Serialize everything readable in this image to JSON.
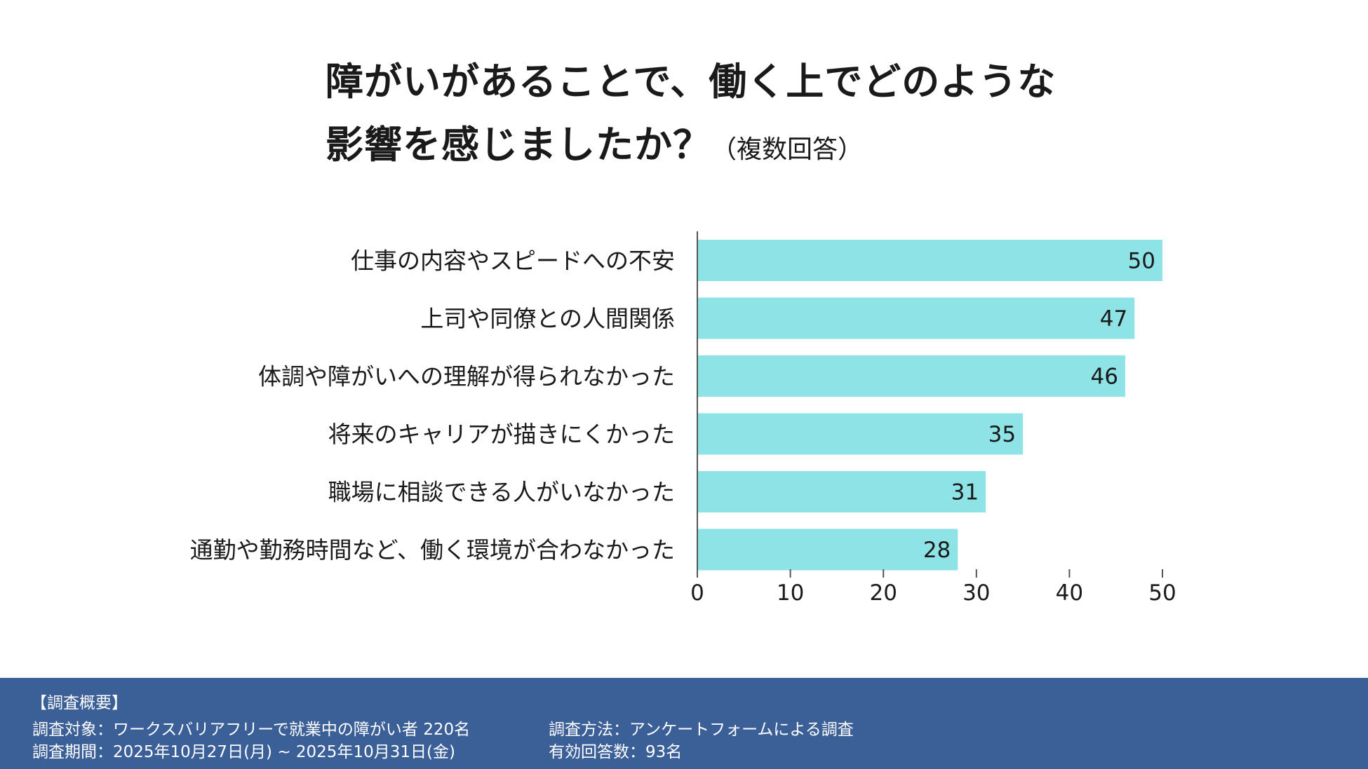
{
  "title": {
    "line1": "障がいがあることで、働く上でどのような",
    "line2": "影響を感じましたか？",
    "note": "（複数回答）"
  },
  "chart_data": {
    "type": "bar",
    "orientation": "horizontal",
    "categories": [
      "仕事の内容やスピードへの不安",
      "上司や同僚との人間関係",
      "体調や障がいへの理解が得られなかった",
      "将来のキャリアが描きにくかった",
      "職場に相談できる人がいなかった",
      "通勤や勤務時間など、働く環境が合わなかった"
    ],
    "values": [
      50,
      47,
      46,
      35,
      31,
      28
    ],
    "xlim": [
      0,
      50
    ],
    "xticks": [
      0,
      10,
      20,
      30,
      40,
      50
    ],
    "bar_color": "#8ee3e6",
    "data_labels": true,
    "grid": false,
    "legend": "none"
  },
  "footer": {
    "heading": "【調査概要】",
    "target": "調査対象：ワークスバリアフリーで就業中の障がい者 220名",
    "period": "調査期間：2025年10月27日(月) ~ 2025年10月31日(金)",
    "method": "調査方法：アンケートフォームによる調査",
    "valid": "有効回答数：93名",
    "bg_color": "#3b5f97"
  }
}
